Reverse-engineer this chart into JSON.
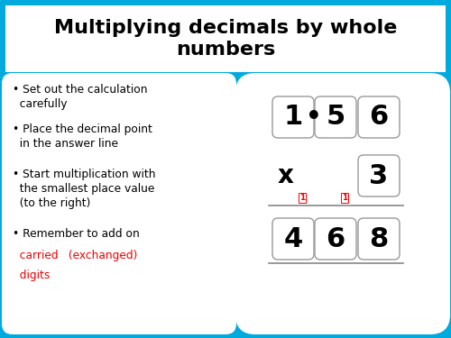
{
  "title": "Multiplying decimals by whole\nnumbers",
  "title_fontsize": 16,
  "bg_color": "#00AADD",
  "header_bg": "#FFFFFF",
  "left_panel_bg": "#FFFFFF",
  "right_panel_bg": "#FFFFFF",
  "bullet1": "Set out the calculation\ncarefully",
  "bullet2": "Place the decimal point\nin the answer line",
  "bullet3": "Start multiplication with\nthe smallest place value\n(to the right)",
  "bullet4_pre": "Remember to add on",
  "bullet4_line2a": "carried",
  "bullet4_line2b": " (exchanged)",
  "bullet4_line3": "digits",
  "red_color": "#EE0000",
  "black_color": "#000000",
  "box_edge": "#999999",
  "box_face": "#FFFFFF",
  "row1_digits": [
    "1",
    "5",
    "6"
  ],
  "row2_x": "x",
  "row2_num": "3",
  "row3_digits": [
    "4",
    "6",
    "8"
  ],
  "carry": "1",
  "dot": "•",
  "number_fontsize": 22,
  "bullet_fontsize": 8.8
}
